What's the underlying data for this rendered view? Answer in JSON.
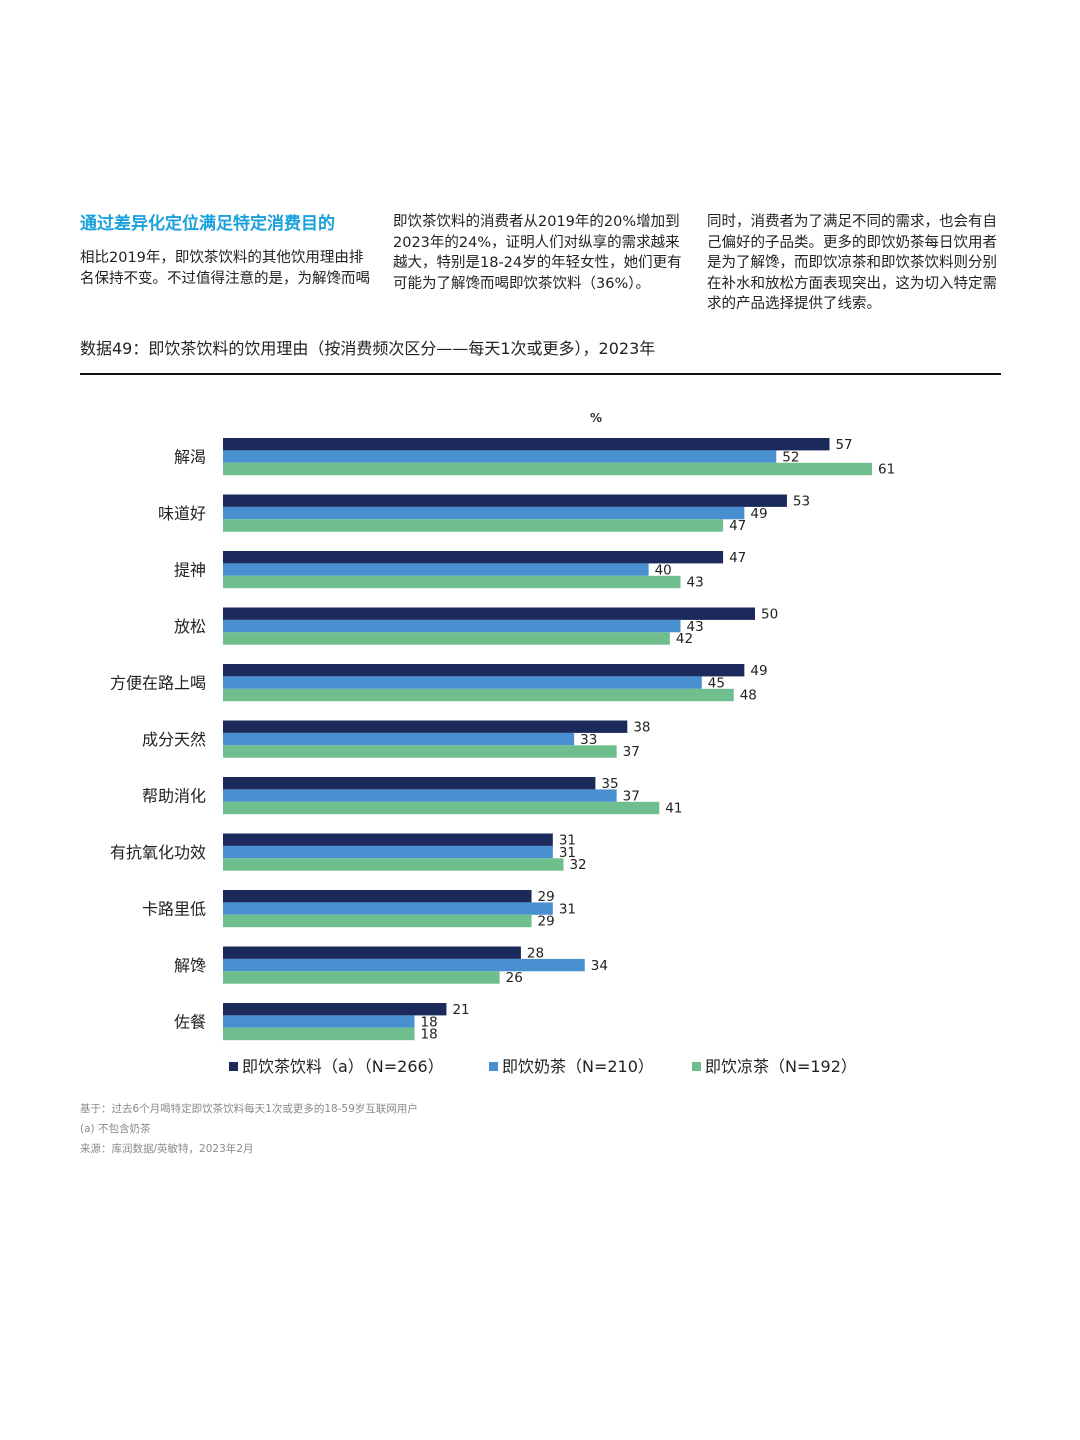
{
  "intro": {
    "heading": "通过差异化定位满足特定消费目的",
    "col1_text": "相比2019年，即饮茶饮料的其他饮用理由排名保持不变。不过值得注意的是，为解馋而喝",
    "col2_text": "即饮茶饮料的消费者从2019年的20%增加到2023年的24%，证明人们对纵享的需求越来越大，特别是18-24岁的年轻女性，她们更有可能为了解馋而喝即饮茶饮料（36%）。",
    "col3_text": "同时，消费者为了满足不同的需求，也会有自己偏好的子品类。更多的即饮奶茶每日饮用者是为了解馋，而即饮凉茶和即饮茶饮料则分别在补水和放松方面表现突出，这为切入特定需求的产品选择提供了线索。"
  },
  "figure_title": "数据49：即饮茶饮料的饮用理由（按消费频次区分——每天1次或更多），2023年",
  "chart_data": {
    "type": "bar",
    "orientation": "horizontal",
    "unit_label": "%",
    "categories": [
      "解渴",
      "味道好",
      "提神",
      "放松",
      "方便在路上喝",
      "成分天然",
      "帮助消化",
      "有抗氧化功效",
      "卡路里低",
      "解馋",
      "佐餐"
    ],
    "series": [
      {
        "name": "即饮茶饮料（a）（N=266）",
        "color": "#1b2a5b",
        "values": [
          57,
          53,
          47,
          50,
          49,
          38,
          35,
          31,
          29,
          28,
          21
        ]
      },
      {
        "name": "即饮奶茶（N=210）",
        "color": "#4a90d0",
        "values": [
          52,
          49,
          40,
          43,
          45,
          33,
          37,
          31,
          31,
          34,
          18
        ]
      },
      {
        "name": "即饮凉茶（N=192）",
        "color": "#6fbf8e",
        "values": [
          61,
          47,
          43,
          42,
          48,
          37,
          41,
          32,
          29,
          26,
          18
        ]
      }
    ],
    "xlim": [
      0,
      100
    ],
    "legend_position": "bottom"
  },
  "footnotes": {
    "base": "基于：过去6个月喝特定即饮茶饮料每天1次或更多的18-59岁互联网用户",
    "note_a": "(a) 不包含奶茶",
    "source": "来源：库润数据/英敏特，2023年2月"
  }
}
